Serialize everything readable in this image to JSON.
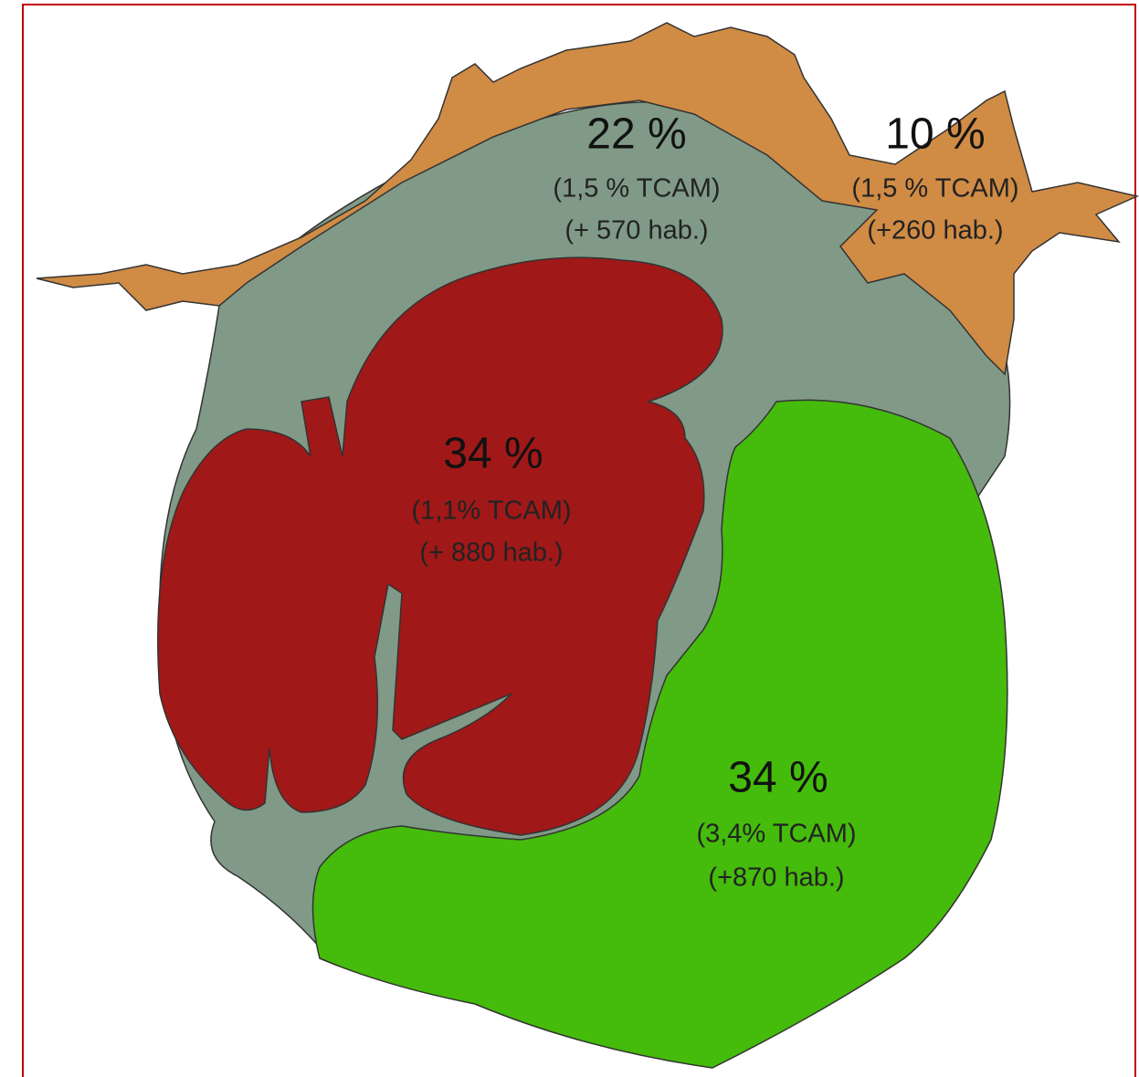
{
  "regions": [
    {
      "share": "22 %",
      "tcam": "(1,5 % TCAM)",
      "gain": "(+ 570 hab.)"
    },
    {
      "share": "10 %",
      "tcam": "(1,5 % TCAM)",
      "gain": "(+260 hab.)"
    },
    {
      "share": "34 %",
      "tcam": "(1,1% TCAM)",
      "gain": "(+ 880 hab.)"
    },
    {
      "share": "34 %",
      "tcam": "(3,4% TCAM)",
      "gain": "(+870 hab.)"
    }
  ]
}
